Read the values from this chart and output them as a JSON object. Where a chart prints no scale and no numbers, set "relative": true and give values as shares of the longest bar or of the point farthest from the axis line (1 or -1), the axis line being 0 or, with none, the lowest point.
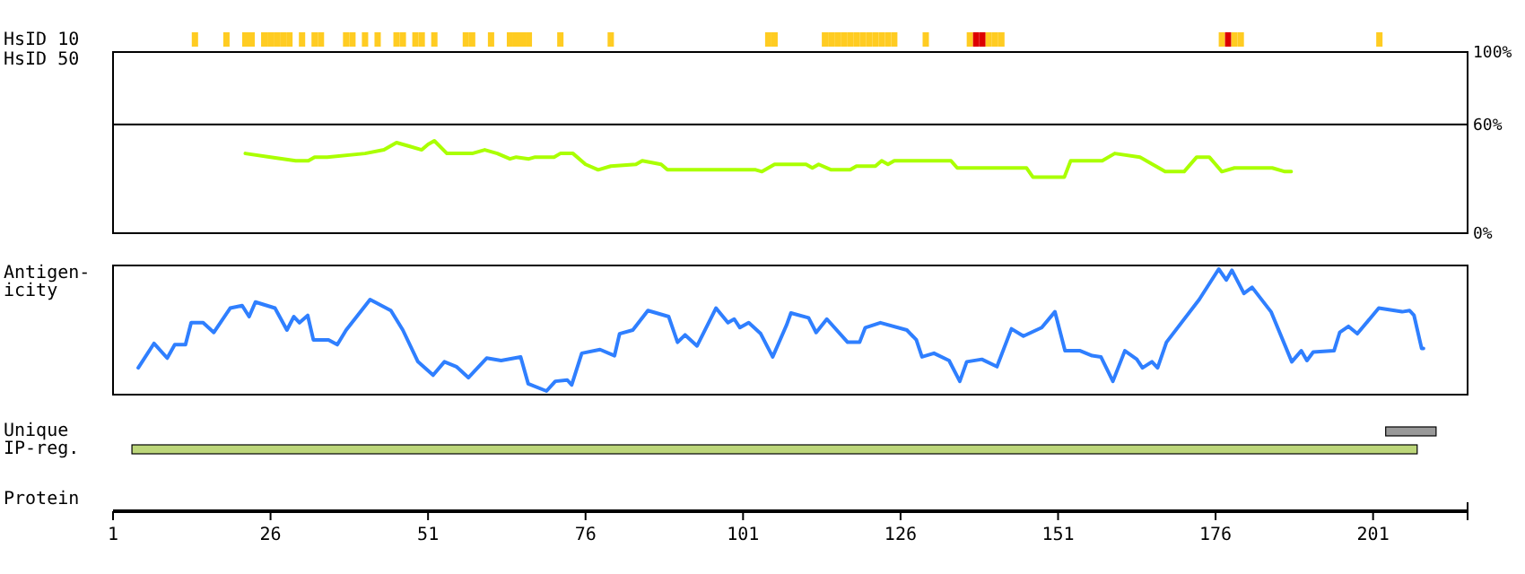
{
  "chart_data": [
    {
      "type": "bar",
      "ylabel": "HsID 10",
      "relative": true,
      "xlim": [
        1,
        216
      ],
      "x": [
        14,
        19,
        22,
        23,
        25,
        26,
        27,
        28,
        29,
        31,
        33,
        34,
        38,
        39,
        41,
        43,
        46,
        47,
        49,
        50,
        52,
        57,
        58,
        61,
        64,
        65,
        66,
        67,
        72,
        80,
        105,
        106,
        114,
        115,
        116,
        117,
        118,
        119,
        120,
        121,
        122,
        123,
        124,
        125,
        130,
        137,
        138,
        139,
        140,
        141,
        142,
        177,
        178,
        179,
        180,
        202
      ],
      "values": [
        1,
        1,
        1,
        1,
        1,
        1,
        1,
        1,
        1,
        1,
        1,
        1,
        1,
        1,
        1,
        1,
        1,
        1,
        1,
        1,
        1,
        1,
        1,
        1,
        1,
        1,
        1,
        1,
        1,
        1,
        1,
        1,
        1,
        1,
        1,
        1,
        1,
        1,
        1,
        1,
        1,
        1,
        1,
        1,
        1,
        1,
        1,
        1,
        1,
        1,
        1,
        1,
        1,
        1,
        1,
        1
      ],
      "colors": [
        "#ffcc22",
        "#ffcc22",
        "#ffcc22",
        "#ffcc22",
        "#ffcc22",
        "#ffcc22",
        "#ffcc22",
        "#ffcc22",
        "#ffcc22",
        "#ffcc22",
        "#ffcc22",
        "#ffcc22",
        "#ffcc22",
        "#ffcc22",
        "#ffcc22",
        "#ffcc22",
        "#ffcc22",
        "#ffcc22",
        "#ffcc22",
        "#ffcc22",
        "#ffcc22",
        "#ffcc22",
        "#ffcc22",
        "#ffcc22",
        "#ffcc22",
        "#ffcc22",
        "#ffcc22",
        "#ffcc22",
        "#ffcc22",
        "#ffcc22",
        "#ffcc22",
        "#ffcc22",
        "#ffcc22",
        "#ffcc22",
        "#ffcc22",
        "#ffcc22",
        "#ffcc22",
        "#ffcc22",
        "#ffcc22",
        "#ffcc22",
        "#ffcc22",
        "#ffcc22",
        "#ffcc22",
        "#ffcc22",
        "#ffcc22",
        "#ffcc22",
        "#dd0000",
        "#dd0000",
        "#ffcc22",
        "#ffcc22",
        "#ffcc22",
        "#ffcc22",
        "#dd0000",
        "#ffcc22",
        "#ffcc22",
        "#ffcc22"
      ]
    },
    {
      "type": "line",
      "ylabel": "HsID 50",
      "xlim": [
        1,
        216
      ],
      "ylim": [
        0,
        100
      ],
      "yticks": [
        {
          "value": 0,
          "label": "0%"
        },
        {
          "value": 60,
          "label": "60%"
        },
        {
          "value": 100,
          "label": "100%"
        }
      ],
      "tick_labels": "y",
      "ref_lines": [
        {
          "axis": "y",
          "value": 60,
          "color": "#000000"
        }
      ],
      "series": [
        {
          "color": "#aaff00",
          "x": [
            22,
            26,
            30,
            32,
            33,
            35,
            41,
            44,
            46,
            48,
            50,
            51,
            52,
            54,
            58,
            60,
            62,
            64,
            65,
            67,
            68,
            71,
            72,
            74,
            76,
            78,
            80,
            84,
            85,
            88,
            89,
            103,
            104,
            106,
            111,
            112,
            113,
            115,
            118,
            119,
            122,
            123,
            124,
            125,
            134,
            135,
            146,
            147,
            152,
            153,
            158,
            160,
            164,
            166,
            168,
            171,
            173,
            175,
            176,
            177,
            179,
            185,
            187,
            188
          ],
          "values": [
            44,
            42,
            40,
            40,
            42,
            42,
            44,
            46,
            50,
            48,
            46,
            49,
            51,
            44,
            44,
            46,
            44,
            41,
            42,
            41,
            42,
            42,
            44,
            44,
            38,
            35,
            37,
            38,
            40,
            38,
            35,
            35,
            34,
            38,
            38,
            36,
            38,
            35,
            35,
            37,
            37,
            40,
            38,
            40,
            40,
            36,
            36,
            31,
            31,
            40,
            40,
            44,
            42,
            38,
            34,
            34,
            42,
            42,
            38,
            34,
            36,
            36,
            34,
            34
          ]
        }
      ]
    },
    {
      "type": "line",
      "ylabel": "Antigen-icity",
      "relative": true,
      "xlim": [
        1,
        216
      ],
      "series": [
        {
          "color": "#2f7fff",
          "x": [
            5,
            7.5,
            9.6,
            10.8,
            12.5,
            13.4,
            15.3,
            17,
            19.6,
            21.5,
            22.6,
            23.6,
            26.7,
            28.6,
            29.7,
            30.6,
            31.9,
            32.8,
            35.2,
            36.6,
            38,
            41.8,
            45.1,
            47,
            49.4,
            51.8,
            53.6,
            55.5,
            57.4,
            60.3,
            62.6,
            65.7,
            66.9,
            69.8,
            71.2,
            73.1,
            73.8,
            75.4,
            78.3,
            80.6,
            81.4,
            83.5,
            85.9,
            89.2,
            90.6,
            91.8,
            93.7,
            96.7,
            98.6,
            99.6,
            100.5,
            101.9,
            103.8,
            105.7,
            107.9,
            108.6,
            111.4,
            112.6,
            114.3,
            117.6,
            119.5,
            120.4,
            122.8,
            127,
            128.5,
            129.4,
            131.3,
            133.7,
            135.4,
            136.5,
            138.9,
            141.3,
            143.6,
            145.5,
            148.4,
            150.5,
            152.1,
            154.5,
            156.4,
            157.8,
            159.7,
            161.6,
            163.5,
            164.4,
            165.9,
            166.8,
            168.2,
            173.4,
            176.5,
            177.7,
            178.6,
            180.5,
            181.8,
            184.8,
            188.1,
            189.6,
            190.5,
            191.5,
            194.8,
            195.7,
            197.1,
            198.5,
            201.9,
            205.6,
            206.8,
            207.5,
            208.7,
            209
          ],
          "values": [
            0.19,
            0.39,
            0.27,
            0.38,
            0.38,
            0.56,
            0.56,
            0.48,
            0.68,
            0.7,
            0.61,
            0.73,
            0.68,
            0.5,
            0.61,
            0.56,
            0.62,
            0.42,
            0.42,
            0.38,
            0.5,
            0.75,
            0.66,
            0.5,
            0.24,
            0.13,
            0.24,
            0.2,
            0.11,
            0.27,
            0.25,
            0.28,
            0.06,
            0,
            0.08,
            0.09,
            0.05,
            0.31,
            0.34,
            0.29,
            0.47,
            0.5,
            0.66,
            0.61,
            0.4,
            0.46,
            0.37,
            0.68,
            0.56,
            0.59,
            0.52,
            0.56,
            0.47,
            0.28,
            0.54,
            0.64,
            0.6,
            0.48,
            0.59,
            0.4,
            0.4,
            0.52,
            0.56,
            0.5,
            0.42,
            0.28,
            0.31,
            0.25,
            0.08,
            0.24,
            0.26,
            0.2,
            0.51,
            0.45,
            0.52,
            0.65,
            0.33,
            0.33,
            0.29,
            0.28,
            0.08,
            0.33,
            0.26,
            0.19,
            0.24,
            0.19,
            0.4,
            0.75,
            1,
            0.91,
            0.99,
            0.8,
            0.85,
            0.65,
            0.24,
            0.33,
            0.25,
            0.32,
            0.33,
            0.48,
            0.53,
            0.47,
            0.68,
            0.65,
            0.66,
            0.62,
            0.35,
            0.35
          ]
        }
      ]
    },
    {
      "type": "bar",
      "orientation": "horizontal",
      "xlabel": "Protein",
      "categories": [
        "Unique",
        "IP-reg."
      ],
      "base": [
        203,
        4
      ],
      "values": [
        8,
        204
      ],
      "colors": [
        "#999999",
        "#bcd67a"
      ],
      "xlim": [
        1,
        216
      ],
      "xticks": [
        1,
        26,
        51,
        76,
        101,
        126,
        151,
        176,
        201
      ]
    }
  ]
}
